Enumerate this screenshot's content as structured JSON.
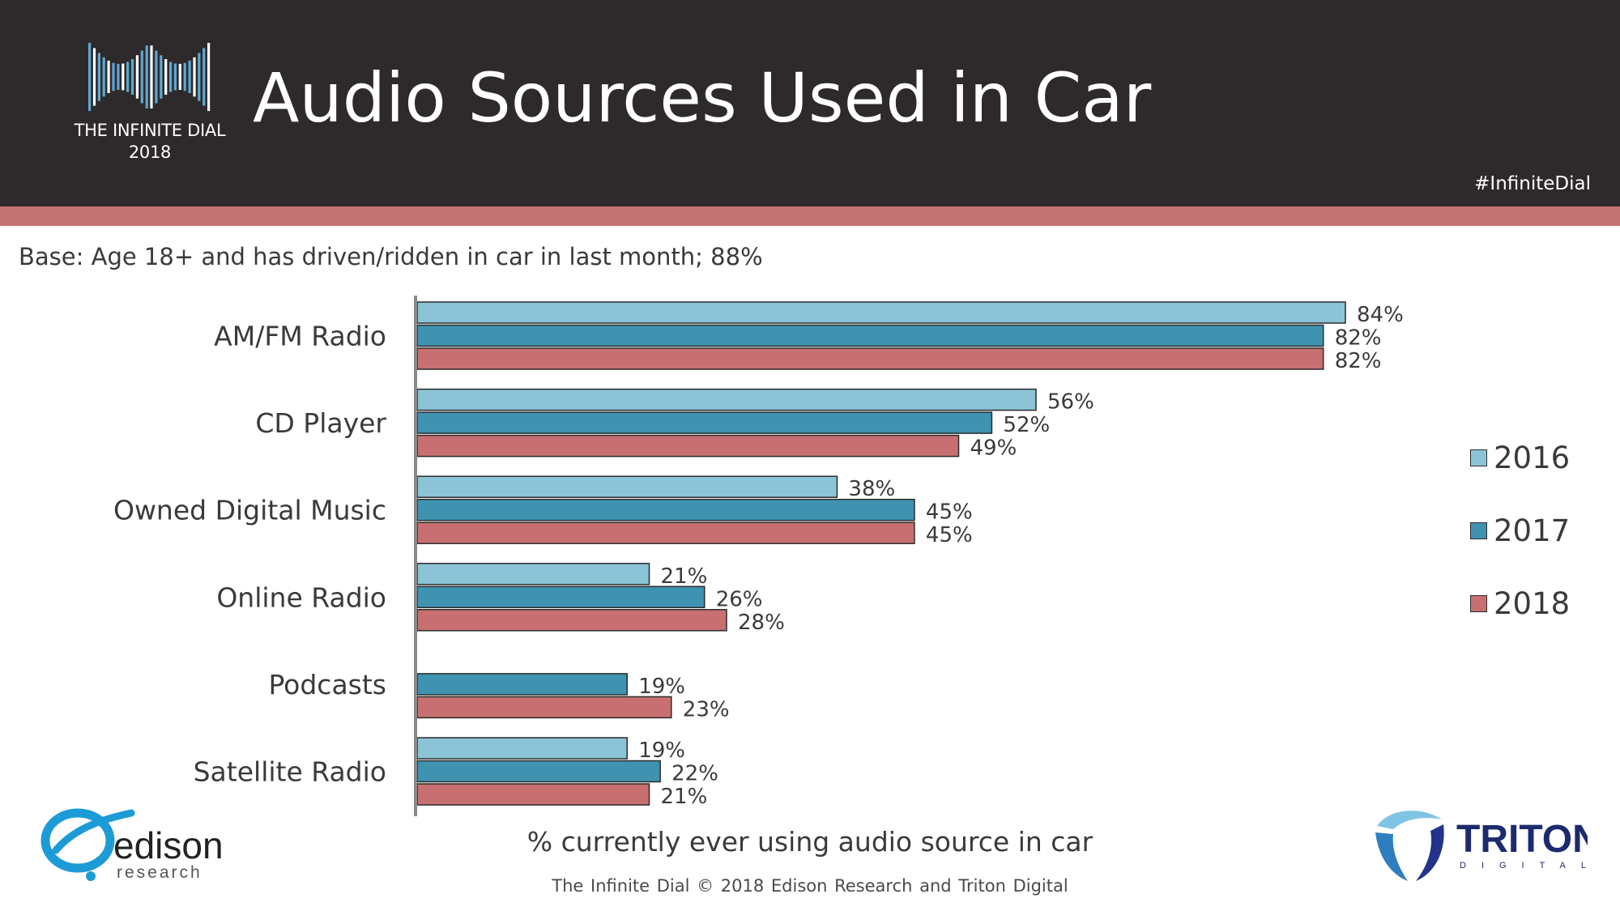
{
  "header": {
    "brand_name": "THE INFINITE DIAL",
    "brand_year": "2018",
    "title": "Audio Sources Used in Car",
    "hashtag": "#InfiniteDial"
  },
  "base_note": "Base: Age 18+ and has driven/ridden in car in last month; 88%",
  "chart_data": {
    "type": "bar",
    "orientation": "horizontal",
    "categories": [
      "AM/FM Radio",
      "CD Player",
      "Owned Digital Music",
      "Online Radio",
      "Podcasts",
      "Satellite Radio"
    ],
    "series": [
      {
        "name": "2016",
        "color": "#8cc4d7",
        "values": [
          84,
          56,
          38,
          21,
          null,
          19
        ]
      },
      {
        "name": "2017",
        "color": "#3f93b0",
        "values": [
          82,
          52,
          45,
          26,
          19,
          22
        ]
      },
      {
        "name": "2018",
        "color": "#c87071",
        "values": [
          82,
          49,
          45,
          28,
          23,
          21
        ]
      }
    ],
    "value_suffix": "%",
    "xlim": [
      0,
      100
    ],
    "xlabel": "% currently ever using audio source in car",
    "grid": false,
    "legend_position": "right"
  },
  "footer": {
    "text": "The Infinite Dial    © 2018 Edison Research and Triton Digital"
  },
  "logos": {
    "edison_name": "edison",
    "edison_sub": "research",
    "triton_name": "TRITON",
    "triton_sub": "DIGITAL"
  }
}
